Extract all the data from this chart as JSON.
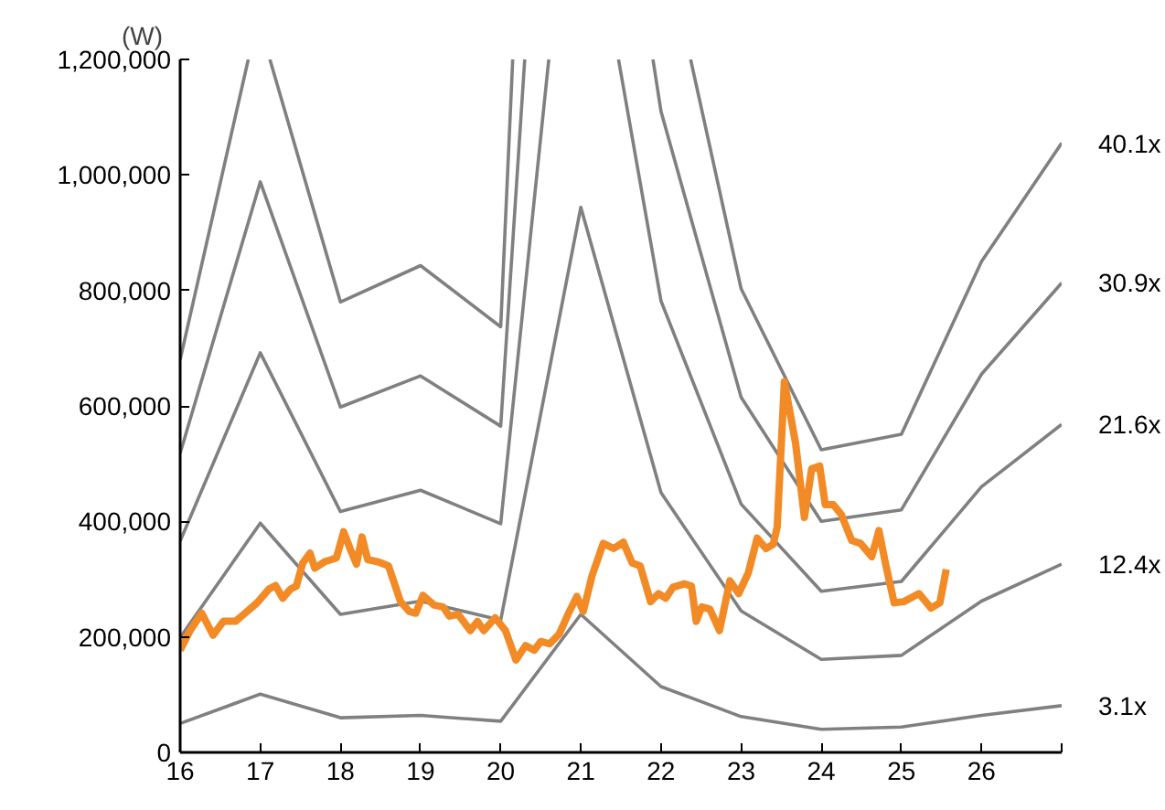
{
  "chart_data": {
    "type": "line",
    "ylabel": "(W)",
    "xlim": [
      16,
      27
    ],
    "xticks": [
      16,
      17,
      18,
      19,
      20,
      21,
      22,
      23,
      24,
      25,
      26,
      {
        "value": 27,
        "label": null
      }
    ],
    "ylim": [
      0,
      1200000
    ],
    "yticks": [
      {
        "value": 0,
        "label": "0"
      },
      {
        "value": 200000,
        "label": "200,000"
      },
      {
        "value": 400000,
        "label": "400,000"
      },
      {
        "value": 600000,
        "label": "600,000"
      },
      {
        "value": 800000,
        "label": "800,000"
      },
      {
        "value": 1000000,
        "label": "1,000,000"
      },
      {
        "value": 1200000,
        "label": "1,200,000"
      }
    ],
    "grid": false,
    "legend": false,
    "marker": "none",
    "line_style": "solid",
    "series": [
      {
        "name": "40.1x",
        "color": "#808080",
        "x": [
          16,
          16.85,
          16.95,
          17.12,
          18,
          19,
          20,
          20.15,
          20.2,
          22.37,
          23,
          24,
          25,
          26,
          27
        ],
        "values": [
          680000,
          1200000,
          null,
          1200000,
          780000,
          843000,
          737000,
          1200000,
          null,
          1200000,
          803000,
          524000,
          551000,
          850000,
          1055000
        ]
      },
      {
        "name": "30.9x",
        "color": "#808080",
        "x": [
          16,
          17,
          18,
          19,
          20,
          20.3,
          21,
          21.9,
          22,
          23,
          24,
          25,
          26,
          27
        ],
        "values": [
          518000,
          988000,
          598000,
          652000,
          565000,
          1200000,
          null,
          1200000,
          1110000,
          615000,
          400000,
          420000,
          655000,
          813000
        ]
      },
      {
        "name": "21.6x",
        "color": "#808080",
        "x": [
          16,
          17,
          18,
          19,
          20,
          20.6,
          21,
          21.47,
          22,
          23,
          24,
          25,
          26,
          27
        ],
        "values": [
          366000,
          692000,
          417000,
          454000,
          396000,
          1200000,
          null,
          1200000,
          782000,
          430000,
          279000,
          296000,
          460000,
          568000
        ]
      },
      {
        "name": "12.4x",
        "color": "#808080",
        "x": [
          16,
          17,
          18,
          19,
          20,
          21,
          22,
          23,
          24,
          25,
          26,
          27
        ],
        "values": [
          199000,
          397000,
          239000,
          262000,
          229000,
          944000,
          450000,
          245000,
          161000,
          168000,
          262000,
          326000
        ]
      },
      {
        "name": "3.1x",
        "color": "#808080",
        "x": [
          16,
          17,
          18,
          19,
          20,
          21,
          22,
          23,
          24,
          25,
          26,
          27
        ],
        "values": [
          50000,
          101000,
          60000,
          64000,
          54000,
          239000,
          114000,
          62000,
          40000,
          44000,
          64000,
          81000
        ]
      },
      {
        "color": "#f28a26",
        "x": [
          16.0,
          16.12,
          16.27,
          16.41,
          16.54,
          16.69,
          16.81,
          16.96,
          17.11,
          17.19,
          17.28,
          17.38,
          17.45,
          17.53,
          17.62,
          17.68,
          17.8,
          17.89,
          17.95,
          18.04,
          18.12,
          18.2,
          18.27,
          18.34,
          18.47,
          18.6,
          18.75,
          18.86,
          18.94,
          19.03,
          19.17,
          19.28,
          19.36,
          19.47,
          19.62,
          19.71,
          19.79,
          19.93,
          20.06,
          20.19,
          20.31,
          20.42,
          20.5,
          20.61,
          20.73,
          20.84,
          20.95,
          21.03,
          21.14,
          21.28,
          21.41,
          21.53,
          21.64,
          21.74,
          21.87,
          21.97,
          22.06,
          22.15,
          22.29,
          22.38,
          22.44,
          22.51,
          22.61,
          22.73,
          22.86,
          22.97,
          23.09,
          23.2,
          23.31,
          23.4,
          23.45,
          23.54,
          23.68,
          23.79,
          23.88,
          23.98,
          24.05,
          24.15,
          24.25,
          24.38,
          24.49,
          24.63,
          24.72,
          24.8,
          24.91,
          25.03,
          25.22,
          25.37,
          25.48,
          25.56
        ],
        "values": [
          177000,
          210000,
          241000,
          203000,
          227000,
          227000,
          241000,
          259000,
          283000,
          289000,
          267000,
          283000,
          288000,
          328000,
          345000,
          319000,
          330000,
          334000,
          337000,
          382000,
          353000,
          326000,
          373000,
          334000,
          330000,
          323000,
          261000,
          244000,
          241000,
          272000,
          255000,
          252000,
          236000,
          239000,
          211000,
          227000,
          211000,
          233000,
          211000,
          160000,
          185000,
          177000,
          192000,
          188000,
          205000,
          239000,
          270000,
          244000,
          306000,
          362000,
          353000,
          364000,
          328000,
          323000,
          261000,
          275000,
          267000,
          286000,
          292000,
          288000,
          227000,
          252000,
          248000,
          211000,
          297000,
          275000,
          311000,
          371000,
          353000,
          360000,
          390000,
          642000,
          535000,
          407000,
          491000,
          496000,
          429000,
          429000,
          412000,
          367000,
          362000,
          339000,
          384000,
          328000,
          259000,
          261000,
          275000,
          250000,
          259000,
          317000
        ]
      }
    ]
  }
}
